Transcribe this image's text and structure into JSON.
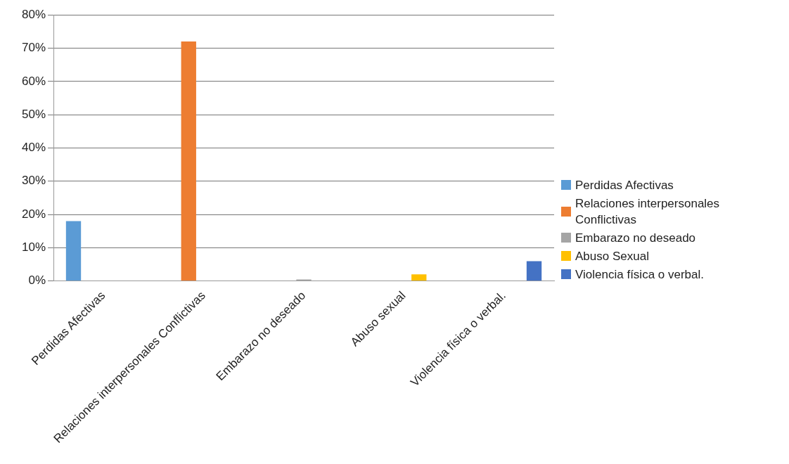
{
  "chart_data": {
    "type": "bar",
    "categories": [
      "Perdidas Afectivas",
      "Relaciones interpersonales Conflictivas",
      "Embarazo no deseado",
      "Abuso sexual",
      "Violencia física o verbal."
    ],
    "series": [
      {
        "name": "Perdidas Afectivas",
        "color": "#5b9bd5",
        "values": [
          18,
          null,
          null,
          null,
          null
        ]
      },
      {
        "name": "Relaciones interpersonales Conflictivas",
        "color": "#ed7d31",
        "values": [
          null,
          72,
          null,
          null,
          null
        ]
      },
      {
        "name": "Embarazo no deseado",
        "color": "#a5a5a5",
        "values": [
          null,
          null,
          0.5,
          null,
          null
        ]
      },
      {
        "name": "Abuso Sexual",
        "color": "#ffc000",
        "values": [
          null,
          null,
          null,
          2,
          null
        ]
      },
      {
        "name": "Violencia física o verbal.",
        "color": "#4472c4",
        "values": [
          null,
          null,
          null,
          null,
          6
        ]
      }
    ],
    "ylim": [
      0,
      80
    ],
    "yticks": [
      {
        "value": 0,
        "label": "0%"
      },
      {
        "value": 10,
        "label": "10%"
      },
      {
        "value": 20,
        "label": "20%"
      },
      {
        "value": 30,
        "label": "30%"
      },
      {
        "value": 40,
        "label": "40%"
      },
      {
        "value": 50,
        "label": "50%"
      },
      {
        "value": 60,
        "label": "60%"
      },
      {
        "value": 70,
        "label": "70%"
      },
      {
        "value": 80,
        "label": "80%"
      }
    ],
    "grid": "y",
    "legend": "right"
  }
}
